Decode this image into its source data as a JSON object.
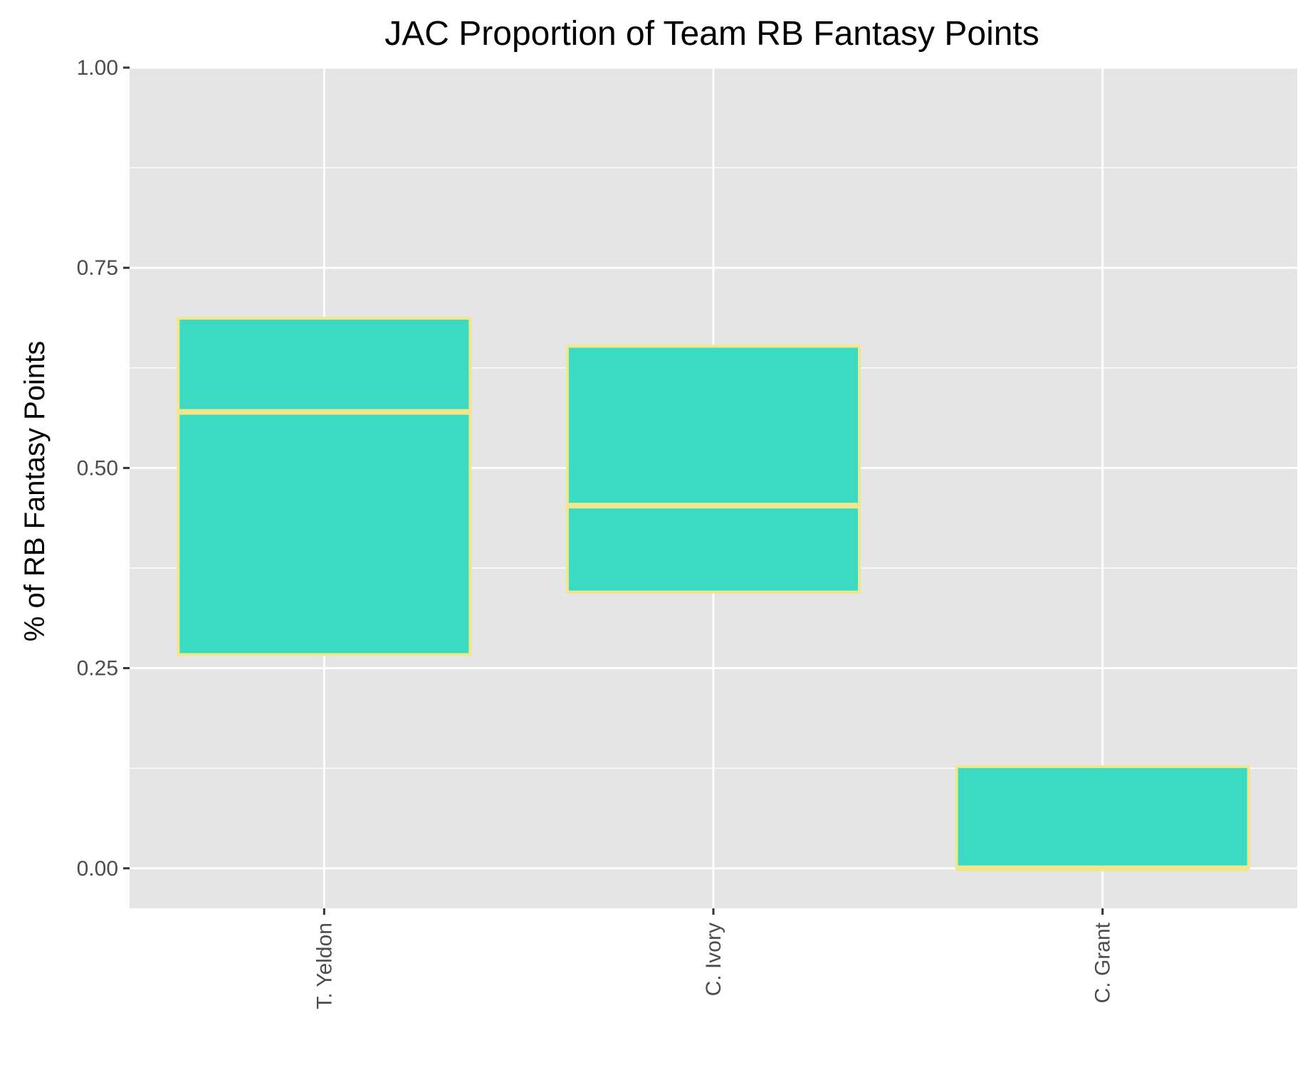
{
  "chart_data": {
    "type": "box",
    "title": "JAC Proportion of Team RB Fantasy Points",
    "xlabel": "",
    "ylabel": "% of RB Fantasy Points",
    "ylim": [
      -0.05,
      1.0
    ],
    "yticks": [
      0.0,
      0.25,
      0.5,
      0.75,
      1.0
    ],
    "ytick_labels": [
      "0.00",
      "0.25",
      "0.50",
      "0.75",
      "1.00"
    ],
    "categories": [
      "T. Yeldon",
      "C. Ivory",
      "C. Grant"
    ],
    "boxes": [
      {
        "category": "T. Yeldon",
        "q1": 0.267,
        "median": 0.57,
        "q3": 0.687
      },
      {
        "category": "C. Ivory",
        "q1": 0.345,
        "median": 0.453,
        "q3": 0.652
      },
      {
        "category": "C. Grant",
        "q1": 0.0,
        "median": 0.0,
        "q3": 0.127
      }
    ],
    "grid": true,
    "colors": {
      "panel_background": "#e5e5e5",
      "grid": "#ffffff",
      "box_fill": "#3bdbc3",
      "box_outline": "#f0e68c",
      "tick_label": "#4d4d4d",
      "axis_tick": "#333333"
    }
  }
}
